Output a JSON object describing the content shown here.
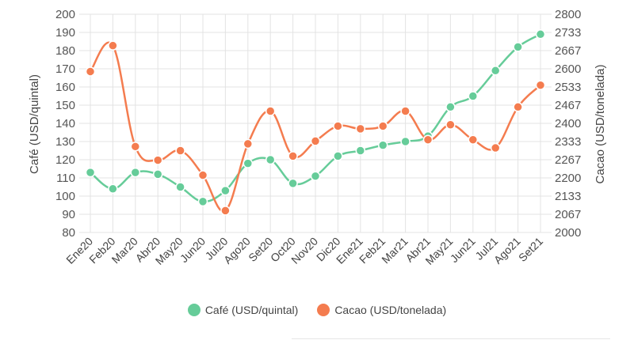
{
  "chart_data": {
    "type": "line",
    "categories": [
      "Ene20",
      "Feb20",
      "Mar20",
      "Abr20",
      "May20",
      "Jun20",
      "Jul20",
      "Ago20",
      "Set20",
      "Oct20",
      "Nov20",
      "Dic20",
      "Ene21",
      "Feb21",
      "Mar21",
      "Abr21",
      "May21",
      "Jun21",
      "Jul21",
      "Ago21",
      "Set21"
    ],
    "series": [
      {
        "name": "Café (USD/quintal)",
        "axis": "left",
        "color": "#66cc99",
        "values": [
          113,
          104,
          113,
          112,
          105,
          97,
          103,
          118,
          120,
          107,
          111,
          122,
          125,
          128,
          130,
          133,
          149,
          155,
          169,
          182,
          189
        ]
      },
      {
        "name": "Cacao (USD/tonelada)",
        "axis": "right",
        "color": "#f47c4f",
        "values": [
          2590,
          2685,
          2315,
          2265,
          2300,
          2210,
          2080,
          2325,
          2445,
          2280,
          2335,
          2390,
          2380,
          2390,
          2445,
          2340,
          2395,
          2340,
          2310,
          2460,
          2540
        ]
      }
    ],
    "y_left": {
      "label": "Café (USD/quintal)",
      "min": 80,
      "max": 200,
      "ticks": [
        "200",
        "190",
        "180",
        "170",
        "160",
        "150",
        "140",
        "130",
        "120",
        "110",
        "100",
        "90",
        "80"
      ]
    },
    "y_right": {
      "label": "Cacao (USD/tonelada)",
      "min": 2000,
      "max": 2800,
      "ticks": [
        "2800",
        "2733",
        "2667",
        "2600",
        "2533",
        "2467",
        "2400",
        "2333",
        "2267",
        "2200",
        "2133",
        "2067",
        "2000"
      ]
    },
    "grid": true,
    "legend_position": "bottom"
  }
}
